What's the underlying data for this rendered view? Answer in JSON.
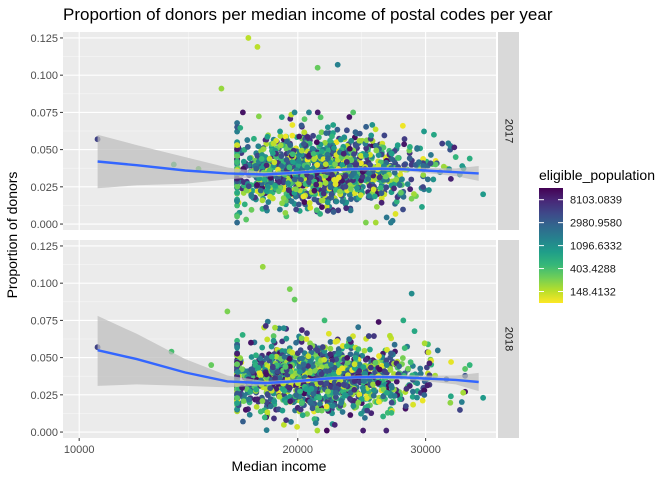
{
  "chart_data": {
    "type": "scatter",
    "title": "Proportion of donors per median income of postal codes per year",
    "xlabel": "Median income",
    "ylabel": "Proportion of donors",
    "x_scale": "log10",
    "xlim": [
      9500,
      37500
    ],
    "x_ticks": [
      10000,
      20000,
      30000
    ],
    "x_tick_labels": [
      "10000",
      "20000",
      "30000"
    ],
    "ylim": [
      -0.004,
      0.129
    ],
    "y_ticks": [
      0,
      0.025,
      0.05,
      0.075,
      0.1,
      0.125
    ],
    "y_tick_labels": [
      "0.000",
      "0.025",
      "0.050",
      "0.075",
      "0.100",
      "0.125"
    ],
    "grid": true,
    "panel_background": "#ebebeb",
    "facets": [
      {
        "label": "2017",
        "smooth": {
          "x": [
            10600,
            12000,
            14000,
            16000,
            18000,
            20000,
            22000,
            24000,
            26000,
            28000,
            30000,
            33000,
            35500
          ],
          "y": [
            0.042,
            0.0395,
            0.036,
            0.034,
            0.0333,
            0.0345,
            0.036,
            0.037,
            0.0372,
            0.0368,
            0.036,
            0.0348,
            0.034
          ],
          "lower": [
            0.024,
            0.026,
            0.027,
            0.03,
            0.0318,
            0.0333,
            0.0348,
            0.0358,
            0.036,
            0.0354,
            0.0343,
            0.0322,
            0.029
          ],
          "upper": [
            0.06,
            0.053,
            0.045,
            0.038,
            0.0348,
            0.0357,
            0.0372,
            0.0382,
            0.0384,
            0.0382,
            0.0377,
            0.0374,
            0.039
          ]
        },
        "outliers": [
          {
            "x": 10600,
            "y": 0.057,
            "v": 5000
          },
          {
            "x": 17100,
            "y": 0.125,
            "v": 150
          },
          {
            "x": 17600,
            "y": 0.119,
            "v": 150
          },
          {
            "x": 22700,
            "y": 0.107,
            "v": 1500
          },
          {
            "x": 21300,
            "y": 0.105,
            "v": 300
          },
          {
            "x": 15700,
            "y": 0.091,
            "v": 200
          },
          {
            "x": 36000,
            "y": 0.02,
            "v": 900
          },
          {
            "x": 34500,
            "y": 0.044,
            "v": 600
          },
          {
            "x": 33000,
            "y": 0.045,
            "v": 500
          },
          {
            "x": 30800,
            "y": 0.06,
            "v": 700
          },
          {
            "x": 13500,
            "y": 0.04,
            "v": 400
          },
          {
            "x": 14600,
            "y": 0.037,
            "v": 300
          }
        ]
      },
      {
        "label": "2018",
        "smooth": {
          "x": [
            10600,
            12000,
            14000,
            16000,
            18000,
            20000,
            22000,
            24000,
            26000,
            28000,
            30000,
            33000,
            35500
          ],
          "y": [
            0.055,
            0.049,
            0.04,
            0.034,
            0.0328,
            0.0342,
            0.036,
            0.0368,
            0.037,
            0.0367,
            0.036,
            0.035,
            0.0336
          ],
          "lower": [
            0.031,
            0.032,
            0.031,
            0.03,
            0.0313,
            0.033,
            0.0348,
            0.0356,
            0.0357,
            0.0351,
            0.0341,
            0.032,
            0.0275
          ],
          "upper": [
            0.078,
            0.066,
            0.049,
            0.038,
            0.0343,
            0.0355,
            0.0372,
            0.038,
            0.0383,
            0.0383,
            0.0379,
            0.038,
            0.0397
          ]
        },
        "outliers": [
          {
            "x": 10600,
            "y": 0.057,
            "v": 5000
          },
          {
            "x": 17900,
            "y": 0.111,
            "v": 200
          },
          {
            "x": 19500,
            "y": 0.096,
            "v": 250
          },
          {
            "x": 19800,
            "y": 0.089,
            "v": 300
          },
          {
            "x": 16000,
            "y": 0.081,
            "v": 250
          },
          {
            "x": 28700,
            "y": 0.093,
            "v": 1200
          },
          {
            "x": 13400,
            "y": 0.054,
            "v": 400
          },
          {
            "x": 36000,
            "y": 0.023,
            "v": 900
          },
          {
            "x": 34500,
            "y": 0.045,
            "v": 500
          },
          {
            "x": 32500,
            "y": 0.024,
            "v": 700
          },
          {
            "x": 15200,
            "y": 0.045,
            "v": 300
          }
        ],
        "note": "bulk cloud of ~1500 points per facet: x ~ 16000–33000 (centered ~21500), y ~ 0.005–0.07 (centered ~0.036)"
      }
    ],
    "legend": {
      "title": "eligible_population",
      "type": "colorbar",
      "scale": "log",
      "placement": "right",
      "breaks": [
        8103.0839,
        2980.958,
        1096.6332,
        403.4288,
        148.4132
      ],
      "labels": [
        "8103.0839",
        "2980.9580",
        "1096.6332",
        "403.4288",
        "148.4132"
      ],
      "range": [
        90,
        13500
      ],
      "colors": [
        "#440154",
        "#482878",
        "#3e4989",
        "#31688e",
        "#26828e",
        "#1f9e89",
        "#35b779",
        "#6ece58",
        "#b5de2b",
        "#fde725"
      ]
    },
    "smooth_color": "#3366ff",
    "ribbon_color": "#bdbdbd"
  }
}
